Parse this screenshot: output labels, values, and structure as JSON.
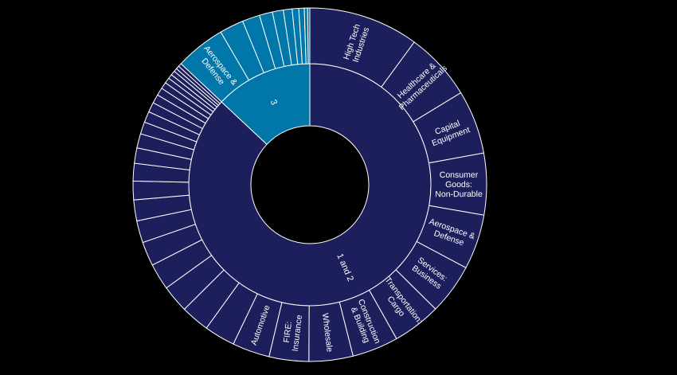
{
  "chart_data": {
    "type": "sunburst",
    "title": "",
    "colors": {
      "tier_1_2": "#1c1f5c",
      "tier_3": "#0077a8",
      "stroke": "#ffffff",
      "background": "#000000"
    },
    "inner_ring": [
      {
        "label": "1 and 2",
        "value": 87,
        "color_key": "tier_1_2"
      },
      {
        "label": "3",
        "value": 13,
        "color_key": "tier_3"
      }
    ],
    "outer_ring": [
      {
        "label": "High Tech Industries",
        "value": 10.0,
        "parent": "1 and 2"
      },
      {
        "label": "Healthcare & Pharmaceuticals",
        "value": 6.2,
        "parent": "1 and 2"
      },
      {
        "label": "Capital Equipment",
        "value": 5.8,
        "parent": "1 and 2"
      },
      {
        "label": "Consumer Goods: Non-Durable",
        "value": 5.6,
        "parent": "1 and 2"
      },
      {
        "label": "Aerospace & Defense",
        "value": 5.0,
        "parent": "1 and 2"
      },
      {
        "label": "Services: Business",
        "value": 4.6,
        "parent": "1 and 2"
      },
      {
        "label": "Transportation: Cargo",
        "value": 4.4,
        "parent": "1 and 2"
      },
      {
        "label": "Construction & Building",
        "value": 4.2,
        "parent": "1 and 2"
      },
      {
        "label": "Wholesale",
        "value": 4.0,
        "parent": "1 and 2"
      },
      {
        "label": "FIRE: Insurance",
        "value": 3.6,
        "parent": "1 and 2"
      },
      {
        "label": "Automotive",
        "value": 3.4,
        "parent": "1 and 2"
      },
      {
        "label": "",
        "value": 2.8,
        "parent": "1 and 2"
      },
      {
        "label": "",
        "value": 2.6,
        "parent": "1 and 2"
      },
      {
        "label": "",
        "value": 2.5,
        "parent": "1 and 2"
      },
      {
        "label": "",
        "value": 2.4,
        "parent": "1 and 2"
      },
      {
        "label": "",
        "value": 2.2,
        "parent": "1 and 2"
      },
      {
        "label": "",
        "value": 2.0,
        "parent": "1 and 2"
      },
      {
        "label": "",
        "value": 1.9,
        "parent": "1 and 2"
      },
      {
        "label": "",
        "value": 1.7,
        "parent": "1 and 2"
      },
      {
        "label": "",
        "value": 1.6,
        "parent": "1 and 2"
      },
      {
        "label": "",
        "value": 1.4,
        "parent": "1 and 2"
      },
      {
        "label": "",
        "value": 1.3,
        "parent": "1 and 2"
      },
      {
        "label": "",
        "value": 1.1,
        "parent": "1 and 2"
      },
      {
        "label": "",
        "value": 1.0,
        "parent": "1 and 2"
      },
      {
        "label": "",
        "value": 0.9,
        "parent": "1 and 2"
      },
      {
        "label": "",
        "value": 0.8,
        "parent": "1 and 2"
      },
      {
        "label": "",
        "value": 0.7,
        "parent": "1 and 2"
      },
      {
        "label": "",
        "value": 0.6,
        "parent": "1 and 2"
      },
      {
        "label": "",
        "value": 0.5,
        "parent": "1 and 2"
      },
      {
        "label": "",
        "value": 0.4,
        "parent": "1 and 2"
      },
      {
        "label": "",
        "value": 0.4,
        "parent": "1 and 2"
      },
      {
        "label": "",
        "value": 0.3,
        "parent": "1 and 2"
      },
      {
        "label": "",
        "value": 0.3,
        "parent": "1 and 2"
      },
      {
        "label": "",
        "value": 0.3,
        "parent": "1 and 2"
      },
      {
        "label": "Aerospace & Defense",
        "value": 4.6,
        "parent": "3"
      },
      {
        "label": "",
        "value": 2.2,
        "parent": "3"
      },
      {
        "label": "",
        "value": 1.6,
        "parent": "3"
      },
      {
        "label": "",
        "value": 1.2,
        "parent": "3"
      },
      {
        "label": "",
        "value": 1.0,
        "parent": "3"
      },
      {
        "label": "",
        "value": 0.8,
        "parent": "3"
      },
      {
        "label": "",
        "value": 0.6,
        "parent": "3"
      },
      {
        "label": "",
        "value": 0.5,
        "parent": "3"
      },
      {
        "label": "",
        "value": 0.3,
        "parent": "3"
      },
      {
        "label": "",
        "value": 0.2,
        "parent": "3"
      }
    ]
  }
}
